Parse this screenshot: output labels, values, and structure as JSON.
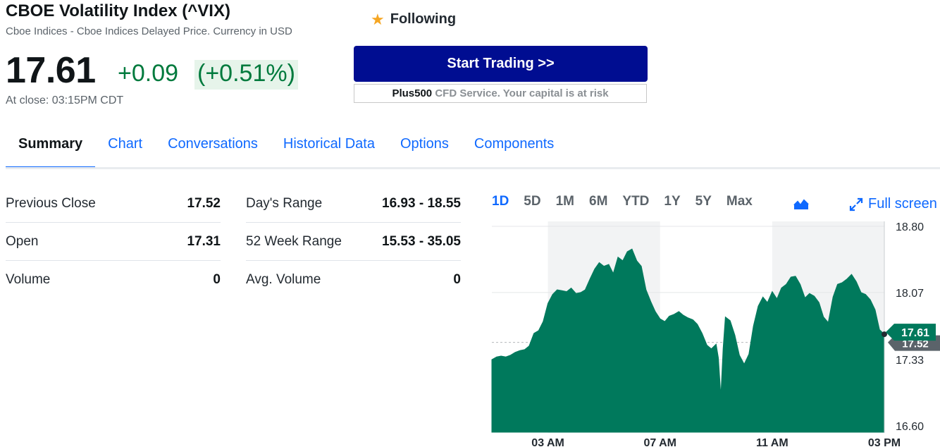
{
  "quote": {
    "title": "CBOE Volatility Index (^VIX)",
    "subtitle": "Cboe Indices - Cboe Indices Delayed Price. Currency in USD",
    "price": "17.61",
    "change": "+0.09",
    "change_pct": "(+0.51%)",
    "close_time": "At close: 03:15PM CDT",
    "up_color": "#007a3d"
  },
  "follow": {
    "label": "Following",
    "icon": "star-icon"
  },
  "ad": {
    "button_label": "Start Trading >>",
    "brand": "Plus500",
    "disclaimer": " CFD Service. Your capital is at risk",
    "button_color": "#000d91"
  },
  "tabs": [
    {
      "label": "Summary",
      "active": true
    },
    {
      "label": "Chart"
    },
    {
      "label": "Conversations"
    },
    {
      "label": "Historical Data"
    },
    {
      "label": "Options"
    },
    {
      "label": "Components"
    }
  ],
  "stats": {
    "col1": [
      {
        "label": "Previous Close",
        "value": "17.52"
      },
      {
        "label": "Open",
        "value": "17.31"
      },
      {
        "label": "Volume",
        "value": "0"
      }
    ],
    "col2": [
      {
        "label": "Day's Range",
        "value": "16.93 - 18.55"
      },
      {
        "label": "52 Week Range",
        "value": "15.53 - 35.05"
      },
      {
        "label": "Avg. Volume",
        "value": "0"
      }
    ]
  },
  "chart_controls": {
    "ranges": [
      "1D",
      "5D",
      "1M",
      "6M",
      "YTD",
      "1Y",
      "5Y",
      "Max"
    ],
    "active_range": "1D",
    "chart_type_icon": "mountain-chart-icon",
    "fullscreen_label": "Full screen"
  },
  "chart_data": {
    "type": "area",
    "x_tick_labels": [
      "03 AM",
      "07 AM",
      "11 AM",
      "03 PM"
    ],
    "y_tick_labels": [
      "18.80",
      "18.07",
      "17.33",
      "16.60"
    ],
    "ylim": [
      16.6,
      18.8
    ],
    "grid": true,
    "fill_color": "#00795c",
    "current_value": "17.61",
    "current_label_color": "#00795c",
    "previous_close": 17.52,
    "previous_close_label": "17.52",
    "x_hours": [
      1.0,
      1.17,
      1.33,
      1.5,
      1.67,
      1.83,
      2.0,
      2.17,
      2.33,
      2.5,
      2.67,
      2.83,
      3.0,
      3.17,
      3.33,
      3.5,
      3.67,
      3.83,
      4.0,
      4.17,
      4.33,
      4.5,
      4.67,
      4.83,
      5.0,
      5.17,
      5.33,
      5.5,
      5.67,
      5.83,
      6.0,
      6.17,
      6.33,
      6.5,
      6.67,
      6.83,
      7.0,
      7.17,
      7.33,
      7.5,
      7.67,
      7.83,
      8.0,
      8.17,
      8.33,
      8.5,
      8.67,
      8.83,
      9.0,
      9.08,
      9.17,
      9.25,
      9.33,
      9.5,
      9.67,
      9.83,
      10.0,
      10.17,
      10.33,
      10.5,
      10.67,
      10.83,
      11.0,
      11.17,
      11.33,
      11.5,
      11.67,
      11.83,
      12.0,
      12.17,
      12.33,
      12.5,
      12.67,
      12.83,
      13.0,
      13.17,
      13.33,
      13.5,
      13.67,
      13.83,
      14.0,
      14.17,
      14.33,
      14.5,
      14.67,
      14.83,
      15.0
    ],
    "values": [
      17.33,
      17.36,
      17.37,
      17.36,
      17.38,
      17.41,
      17.43,
      17.44,
      17.48,
      17.62,
      17.65,
      17.75,
      17.95,
      18.05,
      18.1,
      18.09,
      18.08,
      18.12,
      18.06,
      18.07,
      18.1,
      18.22,
      18.33,
      18.4,
      18.36,
      18.38,
      18.28,
      18.46,
      18.42,
      18.52,
      18.55,
      18.42,
      18.36,
      18.1,
      17.97,
      17.86,
      17.78,
      17.75,
      17.81,
      17.83,
      17.86,
      17.82,
      17.79,
      17.77,
      17.72,
      17.62,
      17.49,
      17.45,
      17.5,
      17.35,
      16.93,
      17.45,
      17.8,
      17.76,
      17.6,
      17.38,
      17.28,
      17.39,
      17.7,
      17.92,
      18.02,
      17.96,
      18.08,
      18.0,
      18.12,
      18.16,
      18.24,
      18.25,
      18.16,
      18.01,
      18.06,
      18.03,
      17.96,
      17.8,
      17.74,
      18.02,
      18.16,
      18.18,
      18.22,
      18.27,
      18.19,
      18.07,
      18.05,
      17.99,
      17.88,
      17.66,
      17.61
    ]
  }
}
